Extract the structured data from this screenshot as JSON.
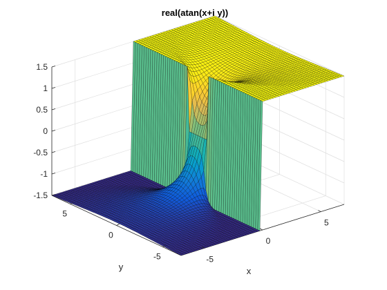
{
  "chart_data": {
    "type": "surface",
    "title": "real(atan(x+i  y))",
    "function": "real(atan(x+i  y))",
    "xlabel": "x",
    "ylabel": "y",
    "zlabel": "",
    "xlim": [
      -7,
      7
    ],
    "ylim": [
      -7,
      7
    ],
    "zlim": [
      -1.5,
      1.5
    ],
    "x_ticks": [
      "-5",
      "0",
      "5"
    ],
    "y_ticks": [
      "-5",
      "0",
      "5"
    ],
    "z_ticks": [
      "-1.5",
      "-1",
      "-0.5",
      "0",
      "0.5",
      "1",
      "1.5"
    ],
    "grid": true,
    "colormap": "parula",
    "edge_color": "#000000"
  }
}
